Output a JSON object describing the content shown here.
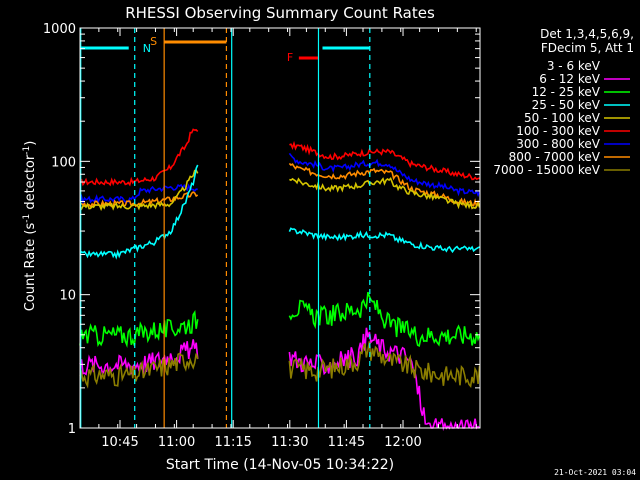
{
  "chart_data": {
    "type": "line",
    "title": "RHESSI Observing Summary Count Rates",
    "xlabel": "Start Time (14-Nov-05 10:34:22)",
    "ylabel_main": "Count Rate (s",
    "ylabel_sup1": "-1",
    "ylabel_mid": " detector",
    "ylabel_sup2": "-1",
    "ylabel_end": ")",
    "yscale": "log",
    "ylim": [
      1,
      1000
    ],
    "xlim_min": [
      0,
      106
    ],
    "x_ticks": [
      {
        "min": 10.6,
        "label": "10:45"
      },
      {
        "min": 25.6,
        "label": "11:00"
      },
      {
        "min": 40.6,
        "label": "11:15"
      },
      {
        "min": 55.6,
        "label": "11:30"
      },
      {
        "min": 70.6,
        "label": "11:45"
      },
      {
        "min": 85.6,
        "label": "12:00"
      }
    ],
    "y_ticks": [
      {
        "value": 1,
        "label": "1"
      },
      {
        "value": 10,
        "label": "10"
      },
      {
        "value": 100,
        "label": "100"
      },
      {
        "value": 1000,
        "label": "1000"
      }
    ],
    "legend": {
      "header": [
        "Det 1,3,4,5,6,9,",
        "FDecim 5, Att 1"
      ],
      "entries": [
        {
          "name": "3 - 6 keV",
          "color": "#000000"
        },
        {
          "name": "6 - 12 keV",
          "color": "#ff00ff"
        },
        {
          "name": "12 - 25 keV",
          "color": "#00ff00"
        },
        {
          "name": "25 - 50 keV",
          "color": "#00ffff"
        },
        {
          "name": "50 - 100 keV",
          "color": "#d4c400"
        },
        {
          "name": "100 - 300 keV",
          "color": "#ff0000"
        },
        {
          "name": "300 - 800 keV",
          "color": "#0000ff"
        },
        {
          "name": "800 - 7000 keV",
          "color": "#ff8c00"
        },
        {
          "name": "7000 - 15000 keV",
          "color": "#8b7d00"
        }
      ]
    },
    "annotations": [
      {
        "label": "N",
        "color": "#00ffff"
      },
      {
        "label": "S",
        "color": "#ff8c00"
      },
      {
        "label": "F",
        "color": "#ff0000"
      }
    ],
    "segments": [
      {
        "from": 0,
        "to": 31.5
      },
      {
        "from": 55.5,
        "to": 106
      }
    ],
    "series": [
      {
        "color": "#ff0000",
        "points": [
          [
            0,
            70
          ],
          [
            14,
            70
          ],
          [
            20,
            75
          ],
          [
            24,
            90
          ],
          [
            26,
            110
          ],
          [
            28,
            130
          ],
          [
            29.5,
            165
          ],
          [
            31,
            175
          ],
          [
            55.5,
            130
          ],
          [
            58,
            130
          ],
          [
            62,
            118
          ],
          [
            66,
            108
          ],
          [
            70,
            110
          ],
          [
            74,
            115
          ],
          [
            78,
            118
          ],
          [
            82,
            118
          ],
          [
            84,
            110
          ],
          [
            88,
            95
          ],
          [
            92,
            90
          ],
          [
            96,
            85
          ],
          [
            100,
            80
          ],
          [
            106,
            75
          ]
        ]
      },
      {
        "color": "#0000ff",
        "points": [
          [
            0,
            52
          ],
          [
            14,
            52
          ],
          [
            16,
            60
          ],
          [
            20,
            62
          ],
          [
            24,
            64
          ],
          [
            28,
            64
          ],
          [
            31,
            63
          ],
          [
            55.5,
            110
          ],
          [
            58,
            100
          ],
          [
            62,
            95
          ],
          [
            66,
            88
          ],
          [
            70,
            90
          ],
          [
            74,
            95
          ],
          [
            78,
            98
          ],
          [
            82,
            96
          ],
          [
            84,
            85
          ],
          [
            88,
            72
          ],
          [
            92,
            68
          ],
          [
            96,
            65
          ],
          [
            100,
            60
          ],
          [
            106,
            58
          ]
        ]
      },
      {
        "color": "#ff8c00",
        "points": [
          [
            0,
            48
          ],
          [
            14,
            48
          ],
          [
            20,
            50
          ],
          [
            24,
            52
          ],
          [
            28,
            55
          ],
          [
            31,
            57
          ],
          [
            55.5,
            95
          ],
          [
            58,
            88
          ],
          [
            62,
            82
          ],
          [
            66,
            78
          ],
          [
            70,
            78
          ],
          [
            74,
            82
          ],
          [
            78,
            85
          ],
          [
            82,
            82
          ],
          [
            84,
            75
          ],
          [
            88,
            62
          ],
          [
            92,
            58
          ],
          [
            96,
            55
          ],
          [
            100,
            50
          ],
          [
            106,
            48
          ]
        ]
      },
      {
        "color": "#d4c400",
        "points": [
          [
            0,
            46
          ],
          [
            14,
            46
          ],
          [
            20,
            47
          ],
          [
            24,
            48
          ],
          [
            26,
            55
          ],
          [
            28,
            65
          ],
          [
            30,
            80
          ],
          [
            31,
            85
          ],
          [
            55.5,
            75
          ],
          [
            58,
            70
          ],
          [
            62,
            66
          ],
          [
            66,
            62
          ],
          [
            70,
            64
          ],
          [
            74,
            66
          ],
          [
            78,
            70
          ],
          [
            82,
            72
          ],
          [
            84,
            65
          ],
          [
            88,
            58
          ],
          [
            92,
            55
          ],
          [
            96,
            52
          ],
          [
            100,
            48
          ],
          [
            106,
            46
          ]
        ]
      },
      {
        "color": "#00ffff",
        "points": [
          [
            0,
            20
          ],
          [
            10,
            20
          ],
          [
            14,
            22
          ],
          [
            20,
            25
          ],
          [
            24,
            30
          ],
          [
            26,
            38
          ],
          [
            28,
            50
          ],
          [
            30,
            70
          ],
          [
            31,
            90
          ],
          [
            55.5,
            30
          ],
          [
            58,
            30
          ],
          [
            62,
            28
          ],
          [
            66,
            27
          ],
          [
            70,
            27
          ],
          [
            74,
            28
          ],
          [
            78,
            28
          ],
          [
            82,
            28
          ],
          [
            84,
            26
          ],
          [
            88,
            24
          ],
          [
            92,
            23
          ],
          [
            96,
            22
          ],
          [
            100,
            22
          ],
          [
            106,
            22
          ]
        ]
      },
      {
        "color": "#00ff00",
        "points": [
          [
            0,
            5
          ],
          [
            14,
            5
          ],
          [
            20,
            5.5
          ],
          [
            24,
            5.5
          ],
          [
            28,
            6
          ],
          [
            31,
            6.5
          ],
          [
            55.5,
            8
          ],
          [
            58,
            8
          ],
          [
            62,
            7
          ],
          [
            66,
            7
          ],
          [
            70,
            7.5
          ],
          [
            74,
            8
          ],
          [
            76,
            9
          ],
          [
            78,
            8.5
          ],
          [
            80,
            7
          ],
          [
            82,
            6
          ],
          [
            86,
            5.5
          ],
          [
            90,
            5
          ],
          [
            96,
            5
          ],
          [
            100,
            5
          ],
          [
            106,
            5
          ]
        ]
      },
      {
        "color": "#ff00ff",
        "points": [
          [
            0,
            3
          ],
          [
            14,
            3
          ],
          [
            20,
            3.2
          ],
          [
            24,
            3.5
          ],
          [
            28,
            3.8
          ],
          [
            31,
            4
          ],
          [
            55.5,
            3.5
          ],
          [
            58,
            3.2
          ],
          [
            62,
            3
          ],
          [
            66,
            3
          ],
          [
            70,
            3.3
          ],
          [
            74,
            3.6
          ],
          [
            76,
            5
          ],
          [
            78,
            4.5
          ],
          [
            80,
            4
          ],
          [
            82,
            3.8
          ],
          [
            86,
            3.5
          ],
          [
            88,
            3
          ],
          [
            92,
            1
          ],
          [
            96,
            1
          ],
          [
            106,
            1
          ]
        ]
      },
      {
        "color": "#8b7d00",
        "points": [
          [
            0,
            2.5
          ],
          [
            14,
            2.5
          ],
          [
            20,
            2.8
          ],
          [
            24,
            3
          ],
          [
            28,
            3.3
          ],
          [
            31,
            3.5
          ],
          [
            55.5,
            2.8
          ],
          [
            58,
            2.8
          ],
          [
            62,
            2.7
          ],
          [
            66,
            2.8
          ],
          [
            70,
            3
          ],
          [
            74,
            3.3
          ],
          [
            76,
            4
          ],
          [
            78,
            3.8
          ],
          [
            80,
            3.5
          ],
          [
            82,
            3.2
          ],
          [
            86,
            3
          ],
          [
            90,
            2.7
          ],
          [
            96,
            2.5
          ],
          [
            100,
            2.5
          ],
          [
            106,
            2.5
          ]
        ]
      }
    ]
  },
  "footer": {
    "date": "21-Oct-2021 03:04"
  }
}
